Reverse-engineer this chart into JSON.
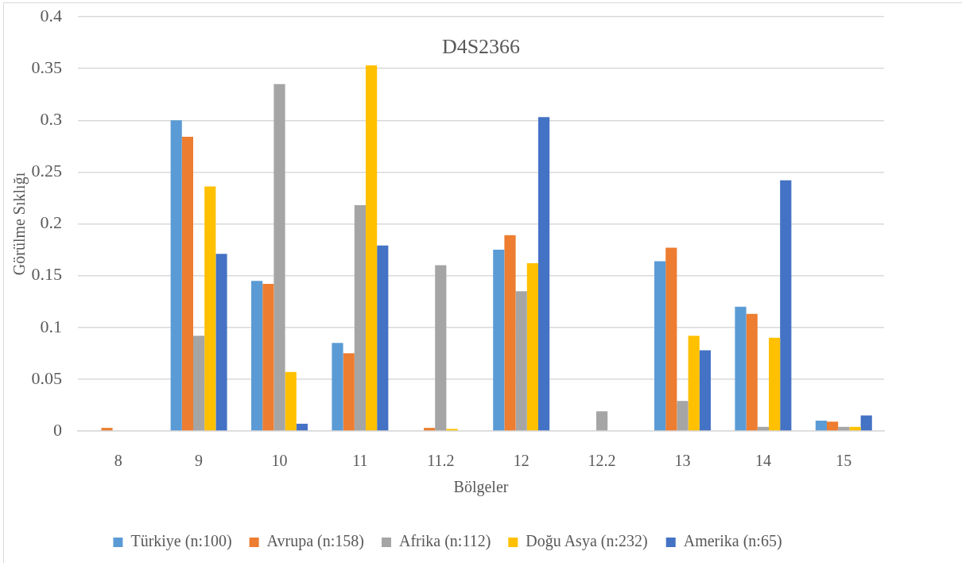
{
  "chart_data": {
    "type": "bar",
    "title": "D4S2366",
    "xlabel": "Bölgeler",
    "ylabel": "Görülme Sıklığı",
    "categories": [
      "8",
      "9",
      "10",
      "11",
      "11.2",
      "12",
      "12.2",
      "13",
      "14",
      "15"
    ],
    "series": [
      {
        "name": "Türkiye (n:100)",
        "color": "#5b9bd5",
        "values": [
          0,
          0.3,
          0.145,
          0.085,
          0,
          0.175,
          0,
          0.164,
          0.12,
          0.01
        ]
      },
      {
        "name": "Avrupa (n:158)",
        "color": "#ed7d31",
        "values": [
          0.003,
          0.284,
          0.142,
          0.075,
          0.003,
          0.189,
          0,
          0.177,
          0.113,
          0.009
        ]
      },
      {
        "name": "Afrika (n:112)",
        "color": "#a5a5a5",
        "values": [
          0,
          0.092,
          0.335,
          0.218,
          0.16,
          0.135,
          0.019,
          0.029,
          0.004,
          0.004
        ]
      },
      {
        "name": "Doğu Asya (n:232)",
        "color": "#ffc000",
        "values": [
          0,
          0.236,
          0.057,
          0.353,
          0.002,
          0.162,
          0,
          0.092,
          0.09,
          0.004
        ]
      },
      {
        "name": "Amerika (n:65)",
        "color": "#4472c4",
        "values": [
          0,
          0.171,
          0.007,
          0.179,
          0,
          0.303,
          0,
          0.078,
          0.242,
          0.015
        ]
      }
    ],
    "ylim": [
      0,
      0.4
    ],
    "yticks": [
      0,
      0.05,
      0.1,
      0.15,
      0.2,
      0.25,
      0.3,
      0.35,
      0.4
    ],
    "grid": "y",
    "legend": "bottom"
  }
}
